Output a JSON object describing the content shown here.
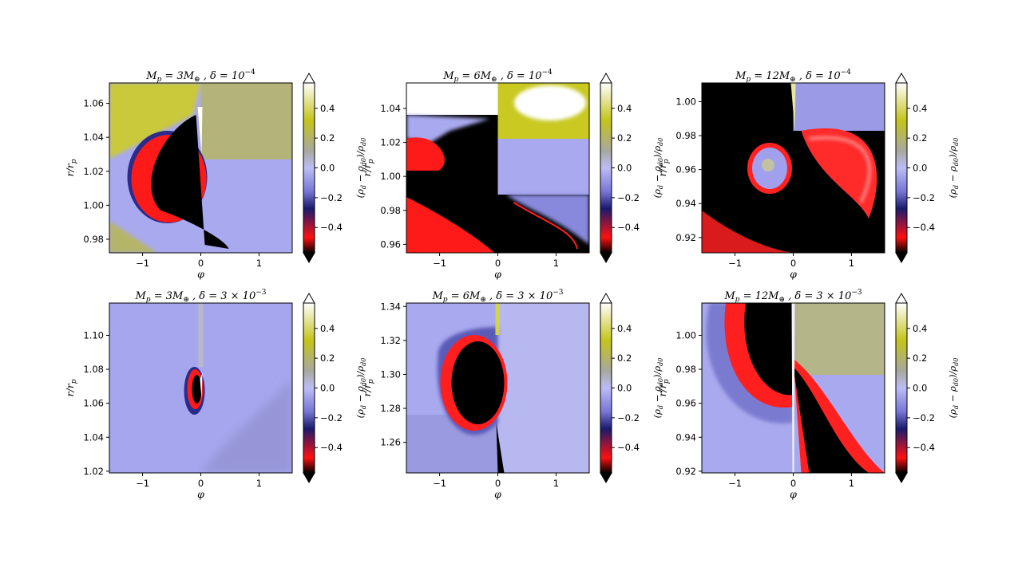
{
  "colorbar": {
    "ticks": [
      "0.4",
      "0.2",
      "0.0",
      "−0.2",
      "−0.4"
    ],
    "tick_values": [
      0.4,
      0.2,
      0.0,
      -0.2,
      -0.4
    ],
    "range": [
      -0.57,
      0.57
    ],
    "label": "(ρd − ρd0)/ρd0",
    "label_parts": {
      "open": "(",
      "rho": "ρ",
      "d": "d",
      "minus": " − ",
      "d0": "d0",
      "close": ")/"
    },
    "stops": [
      "#000000",
      "#ff0000",
      "#111166",
      "#8c8ce6",
      "#b5b5ff",
      "#a6a6a6",
      "#c9c919",
      "#ffffff"
    ],
    "extend": "both"
  },
  "chart_data": [
    {
      "type": "heatmap",
      "title_parts": {
        "mass": "3",
        "delta": "10",
        "delta_exp": "−4",
        "prefix": ""
      },
      "xlabel": "φ",
      "ylabel": "r/rp",
      "xlim": [
        -1.57,
        1.57
      ],
      "ylim": [
        0.972,
        1.072
      ],
      "xticks": [
        -1,
        0,
        1
      ],
      "xtick_labels": [
        "−1",
        "0",
        "1"
      ],
      "yticks": [
        0.98,
        1.0,
        1.02,
        1.04,
        1.06
      ],
      "ytick_labels": [
        "0.98",
        "1.00",
        "1.02",
        "1.04",
        "1.06"
      ],
      "value_range": [
        -0.57,
        0.57
      ]
    },
    {
      "type": "heatmap",
      "title_parts": {
        "mass": "6",
        "delta": "10",
        "delta_exp": "−4",
        "prefix": ""
      },
      "xlabel": "φ",
      "ylabel": "r/rp",
      "xlim": [
        -1.57,
        1.57
      ],
      "ylim": [
        0.955,
        1.055
      ],
      "xticks": [
        -1,
        0,
        1
      ],
      "xtick_labels": [
        "−1",
        "0",
        "1"
      ],
      "yticks": [
        0.96,
        0.98,
        1.0,
        1.02,
        1.04
      ],
      "ytick_labels": [
        "0.96",
        "0.98",
        "1.00",
        "1.02",
        "1.04"
      ],
      "value_range": [
        -0.57,
        0.57
      ]
    },
    {
      "type": "heatmap",
      "title_parts": {
        "mass": "12",
        "delta": "10",
        "delta_exp": "−4",
        "prefix": ""
      },
      "xlabel": "φ",
      "ylabel": "r/rp",
      "xlim": [
        -1.57,
        1.57
      ],
      "ylim": [
        0.911,
        1.011
      ],
      "xticks": [
        -1,
        0,
        1
      ],
      "xtick_labels": [
        "−1",
        "0",
        "1"
      ],
      "yticks": [
        0.92,
        0.94,
        0.96,
        0.98,
        1.0
      ],
      "ytick_labels": [
        "0.92",
        "0.94",
        "0.96",
        "0.98",
        "1.00"
      ],
      "value_range": [
        -0.57,
        0.57
      ]
    },
    {
      "type": "heatmap",
      "title_parts": {
        "mass": "3",
        "delta": "10",
        "delta_exp": "−3",
        "prefix": "3 × "
      },
      "xlabel": "φ",
      "ylabel": "r/rp",
      "xlim": [
        -1.57,
        1.57
      ],
      "ylim": [
        1.019,
        1.119
      ],
      "xticks": [
        -1,
        0,
        1
      ],
      "xtick_labels": [
        "−1",
        "0",
        "1"
      ],
      "yticks": [
        1.02,
        1.04,
        1.06,
        1.08,
        1.1
      ],
      "ytick_labels": [
        "1.02",
        "1.04",
        "1.06",
        "1.08",
        "1.10"
      ],
      "value_range": [
        -0.57,
        0.57
      ]
    },
    {
      "type": "heatmap",
      "title_parts": {
        "mass": "6",
        "delta": "10",
        "delta_exp": "−3",
        "prefix": "3 × "
      },
      "xlabel": "φ",
      "ylabel": "r/rp",
      "xlim": [
        -1.57,
        1.57
      ],
      "ylim": [
        1.242,
        1.342
      ],
      "xticks": [
        -1,
        0,
        1
      ],
      "xtick_labels": [
        "−1",
        "0",
        "1"
      ],
      "yticks": [
        1.26,
        1.28,
        1.3,
        1.32,
        1.34
      ],
      "ytick_labels": [
        "1.26",
        "1.28",
        "1.30",
        "1.32",
        "1.34"
      ],
      "value_range": [
        -0.57,
        0.57
      ]
    },
    {
      "type": "heatmap",
      "title_parts": {
        "mass": "12",
        "delta": "10",
        "delta_exp": "−3",
        "prefix": "3 × "
      },
      "xlabel": "φ",
      "ylabel": "r/rp",
      "xlim": [
        -1.57,
        1.57
      ],
      "ylim": [
        0.919,
        1.019
      ],
      "xticks": [
        -1,
        0,
        1
      ],
      "xtick_labels": [
        "−1",
        "0",
        "1"
      ],
      "yticks": [
        0.92,
        0.94,
        0.96,
        0.98,
        1.0
      ],
      "ytick_labels": [
        "0.92",
        "0.94",
        "0.96",
        "0.98",
        "1.00"
      ],
      "value_range": [
        -0.57,
        0.57
      ]
    }
  ]
}
